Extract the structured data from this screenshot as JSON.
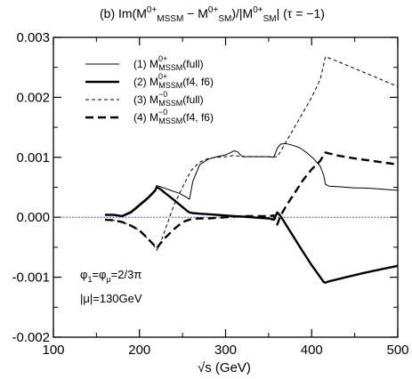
{
  "chart_data": {
    "type": "line",
    "title": "(b) Im(M0+MSSM − M0+SM)/|M0+SM|  (τ = −1)",
    "xlabel": "√s (GeV)",
    "ylabel": "",
    "xlim": [
      100,
      500
    ],
    "ylim": [
      -0.002,
      0.003
    ],
    "x_ticks": [
      "100",
      "200",
      "300",
      "400",
      "500"
    ],
    "y_ticks": [
      "-0.002",
      "-0.001",
      "0.000",
      "0.001",
      "0.002",
      "0.003"
    ],
    "grid": false,
    "legend_position": "top-left",
    "legend": [
      {
        "tag": "(1)",
        "sup": "0+",
        "text": "(full)"
      },
      {
        "tag": "(2)",
        "sup": "0+",
        "text": "(f4, f6)"
      },
      {
        "tag": "(3)",
        "sup": "−0",
        "text": "(full)"
      },
      {
        "tag": "(4)",
        "sup": "−0",
        "text": "(f4, f6)"
      }
    ],
    "legend_symbol": "M",
    "legend_subscript": "MSSM",
    "annotations": [
      {
        "main": "φ",
        "sub1": "1",
        "mid": "=φ",
        "sub2": "μ",
        "rest": "=2/3π"
      },
      {
        "text": "|μ|=130GeV"
      }
    ],
    "reference_line": {
      "y": 0.0,
      "color": "#2b2bff"
    },
    "series": [
      {
        "style": "thin-solid",
        "x": [
          160,
          170,
          180,
          190,
          200,
          210,
          218,
          220,
          222,
          226,
          230,
          236,
          240,
          246,
          250,
          254,
          256,
          258,
          262,
          270,
          280,
          290,
          300,
          306,
          310,
          314,
          318,
          322,
          330,
          340,
          350,
          356,
          360,
          364,
          370,
          378,
          386,
          394,
          402,
          410,
          414,
          416,
          420,
          430,
          440,
          450,
          460,
          470,
          480,
          490,
          500
        ],
        "y": [
          4e-05,
          4e-05,
          3e-05,
          0.0001,
          0.00022,
          0.00034,
          0.00046,
          0.00053,
          0.00052,
          0.0005,
          0.00048,
          0.00045,
          0.00043,
          0.0004,
          0.00037,
          0.00034,
          0.00032,
          0.0003,
          0.0006,
          0.00088,
          0.00097,
          0.00101,
          0.00104,
          0.00108,
          0.00111,
          0.00109,
          0.00103,
          0.00101,
          0.00101,
          0.00101,
          0.00101,
          0.001,
          0.00115,
          0.00122,
          0.00123,
          0.0012,
          0.00116,
          0.00108,
          0.00098,
          0.00085,
          0.0007,
          0.00055,
          0.00052,
          0.00051,
          0.0005,
          0.00049,
          0.00049,
          0.00048,
          0.00047,
          0.00046,
          0.00045
        ]
      },
      {
        "style": "thick-solid",
        "x": [
          160,
          170,
          180,
          190,
          200,
          210,
          218,
          220,
          222,
          226,
          230,
          240,
          250,
          256,
          258,
          262,
          270,
          280,
          290,
          300,
          310,
          320,
          330,
          340,
          350,
          356,
          360,
          364,
          370,
          380,
          390,
          400,
          410,
          414,
          416,
          420,
          440,
          460,
          480,
          500
        ],
        "y": [
          4e-05,
          4e-05,
          2e-05,
          8e-05,
          0.0002,
          0.00032,
          0.00044,
          0.0005,
          0.00049,
          0.00045,
          0.0004,
          0.00029,
          0.00017,
          0.0001,
          8e-05,
          7e-05,
          6e-05,
          5e-05,
          4e-05,
          3e-05,
          2e-05,
          1e-05,
          0.0,
          -1e-05,
          -2e-05,
          -4e-05,
          8e-05,
          2e-05,
          -0.00012,
          -0.00035,
          -0.00058,
          -0.0008,
          -0.001,
          -0.00108,
          -0.00109,
          -0.00107,
          -0.001,
          -0.00093,
          -0.00087,
          -0.00081
        ]
      },
      {
        "style": "thin-dashed",
        "x": [
          160,
          170,
          180,
          190,
          200,
          210,
          218,
          220,
          224,
          230,
          240,
          250,
          260,
          270,
          280,
          290,
          300,
          310,
          320,
          330,
          340,
          350,
          360,
          364,
          370,
          380,
          390,
          400,
          410,
          414,
          416,
          430,
          450,
          470,
          490,
          500
        ],
        "y": [
          -4e-05,
          -5e-05,
          -8e-05,
          -0.00014,
          -0.00022,
          -0.00036,
          -0.0005,
          -0.00055,
          -0.00045,
          -0.0002,
          0.0002,
          0.0005,
          0.00078,
          0.00092,
          0.00098,
          0.001,
          0.00101,
          0.00103,
          0.00101,
          0.00101,
          0.00101,
          0.00101,
          0.00101,
          0.0011,
          0.00125,
          0.0015,
          0.00175,
          0.002,
          0.0023,
          0.00255,
          0.00268,
          0.0026,
          0.00248,
          0.00236,
          0.00224,
          0.00218
        ]
      },
      {
        "style": "thick-dashed",
        "x": [
          160,
          170,
          180,
          190,
          200,
          210,
          218,
          220,
          224,
          230,
          240,
          250,
          260,
          270,
          280,
          290,
          300,
          310,
          320,
          330,
          340,
          350,
          356,
          360,
          364,
          370,
          380,
          390,
          400,
          410,
          414,
          416,
          430,
          450,
          470,
          490,
          500
        ],
        "y": [
          -4e-05,
          -5e-05,
          -8e-05,
          -0.00014,
          -0.00022,
          -0.00036,
          -0.00048,
          -0.00052,
          -0.00044,
          -0.00034,
          -0.0002,
          -8e-05,
          -3e-05,
          -2e-05,
          -2e-05,
          -1e-05,
          0.0,
          1e-05,
          2e-05,
          2e-05,
          2e-05,
          2e-05,
          3e-05,
          -0.00012,
          3e-05,
          0.00018,
          0.0004,
          0.00062,
          0.0008,
          0.00094,
          0.00104,
          0.00108,
          0.00103,
          0.00098,
          0.00094,
          0.0009,
          0.00088
        ]
      }
    ]
  }
}
